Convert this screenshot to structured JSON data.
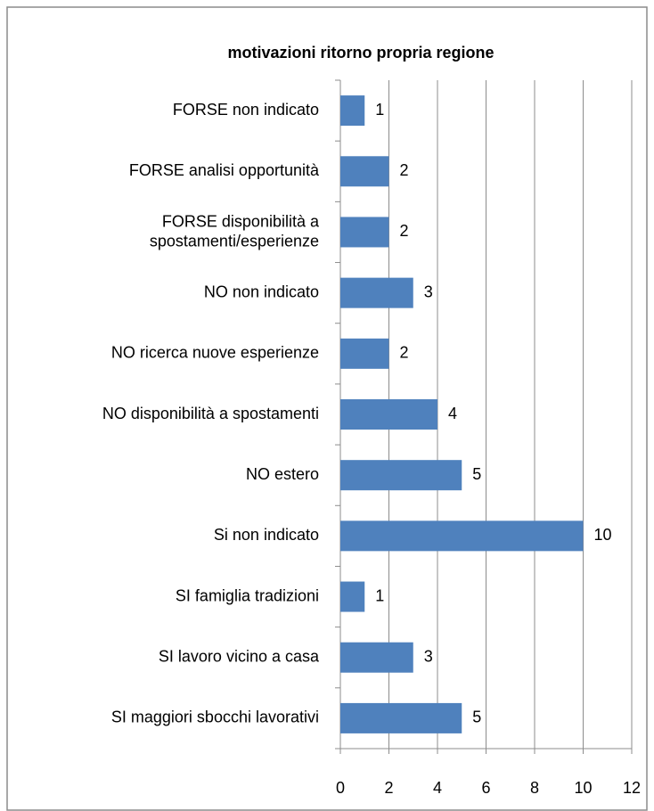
{
  "chart_data": {
    "type": "bar",
    "orientation": "horizontal",
    "title": "motivazioni ritorno propria regione",
    "categories": [
      "FORSE non indicato",
      "FORSE analisi opportunità",
      "FORSE disponibilità a\nspostamenti/esperienze",
      "NO non indicato",
      "NO ricerca nuove esperienze",
      "NO disponibilità a spostamenti",
      "NO estero",
      "Si non indicato",
      "SI famiglia tradizioni",
      "SI lavoro vicino a casa",
      "SI maggiori sbocchi lavorativi"
    ],
    "values": [
      1,
      2,
      2,
      3,
      2,
      4,
      5,
      10,
      1,
      3,
      5
    ],
    "color": "#4f81bd",
    "xlim": [
      0,
      12
    ],
    "xticks": [
      0,
      2,
      4,
      6,
      8,
      10,
      12
    ],
    "grid": true
  }
}
